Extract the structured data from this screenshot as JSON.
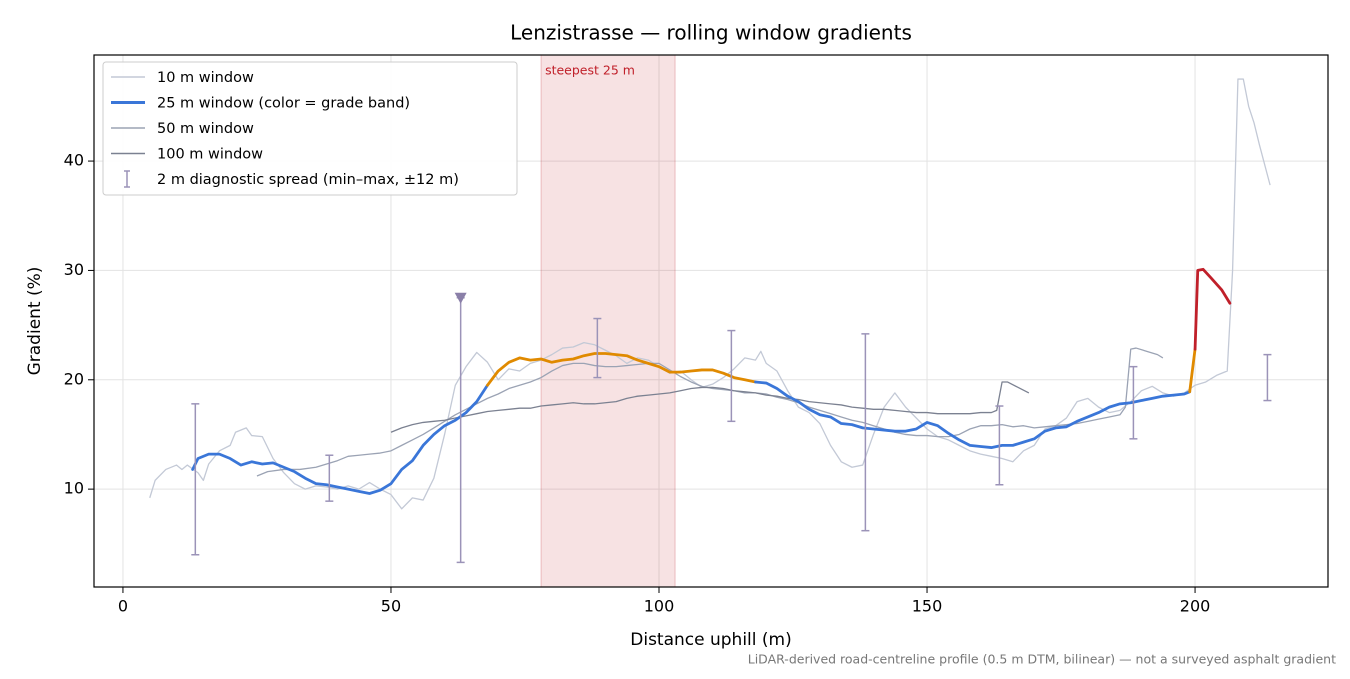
{
  "chart_data": {
    "type": "line",
    "title": "Lenzistrasse — rolling window gradients",
    "x_label": "Distance uphill (m)",
    "y_label": "Gradient (%)",
    "footnote": "LiDAR-derived road-centreline profile (0.5 m DTM, bilinear) — not a surveyed asphalt gradient",
    "xlim": [
      -5.4,
      224.8
    ],
    "ylim": [
      1.05,
      49.7
    ],
    "xticks": [
      0,
      50,
      100,
      150,
      200
    ],
    "yticks": [
      10,
      20,
      30,
      40
    ],
    "grid": true,
    "legend": "upper left",
    "shaded_region": {
      "label": "steepest 25 m",
      "x": [
        78,
        103
      ],
      "color": "#c0202a"
    },
    "series": [
      {
        "name": "10 m window",
        "color": "#c3c9d6",
        "x": [
          5,
          6,
          8,
          10,
          11,
          12,
          14,
          15,
          16,
          18,
          20,
          21,
          23,
          24,
          26,
          28,
          30,
          32,
          34,
          36,
          38,
          40,
          42,
          44,
          46,
          48,
          50,
          52,
          54,
          56,
          58,
          60,
          62,
          64,
          66,
          68,
          70,
          72,
          74,
          76,
          78,
          80,
          82,
          84,
          86,
          88,
          90,
          92,
          94,
          96,
          98,
          100,
          102,
          104,
          106,
          108,
          110,
          112,
          114,
          116,
          118,
          119,
          120,
          122,
          124,
          126,
          128,
          130,
          132,
          134,
          136,
          138,
          140,
          142,
          144,
          146,
          148,
          150,
          152,
          154,
          156,
          158,
          160,
          162,
          164,
          166,
          168,
          170,
          172,
          174,
          176,
          178,
          180,
          182,
          184,
          186,
          188,
          190,
          192,
          194,
          196,
          198,
          200,
          202,
          204,
          206,
          207,
          208,
          209,
          210,
          211,
          212,
          214
        ],
        "values": [
          9.2,
          10.8,
          11.8,
          12.2,
          11.8,
          12.2,
          11.5,
          10.8,
          12.3,
          13.5,
          14,
          15.2,
          15.6,
          14.9,
          14.8,
          12.8,
          11.5,
          10.5,
          10.0,
          10.3,
          10.2,
          10.0,
          10.3,
          10.0,
          10.6,
          10.0,
          9.5,
          8.2,
          9.2,
          9.0,
          11,
          15,
          19.5,
          21.2,
          22.5,
          21.6,
          20.0,
          21.0,
          20.8,
          21.5,
          21.8,
          22.3,
          22.9,
          23.0,
          23.4,
          23.2,
          22.7,
          22.2,
          21.5,
          22.0,
          21.8,
          21.2,
          20.6,
          20.8,
          20.0,
          19.3,
          19.6,
          20.2,
          21.0,
          22.0,
          21.8,
          22.6,
          21.5,
          20.8,
          19.0,
          17.5,
          17.0,
          16.0,
          14.0,
          12.5,
          12.0,
          12.2,
          15.0,
          17.5,
          18.8,
          17.5,
          16.5,
          15.5,
          14.8,
          14.5,
          14.0,
          13.5,
          13.2,
          13.0,
          12.8,
          12.5,
          13.5,
          14.0,
          15.5,
          15.8,
          16.5,
          18.0,
          18.3,
          17.5,
          17.0,
          17.2,
          18.0,
          19.0,
          19.4,
          18.8,
          18.5,
          18.8,
          19.5,
          19.8,
          20.4,
          20.8,
          30,
          47.5,
          47.5,
          45,
          43.5,
          41.5,
          37.8
        ]
      },
      {
        "name": "25 m window (color = grade band)",
        "color": "#3a76d8",
        "band_thresholds": [
          20,
          25
        ],
        "band_colors": [
          "#3a76d8",
          "#e08a00",
          "#c0202a"
        ],
        "x": [
          13,
          14,
          16,
          18,
          20,
          22,
          24,
          26,
          28,
          30,
          32,
          34,
          36,
          38,
          40,
          42,
          44,
          46,
          48,
          50,
          52,
          54,
          56,
          58,
          60,
          62,
          64,
          66,
          68,
          70,
          72,
          74,
          76,
          78,
          80,
          82,
          84,
          86,
          88,
          90,
          92,
          94,
          96,
          98,
          100,
          102,
          104,
          106,
          108,
          110,
          112,
          114,
          116,
          118,
          120,
          122,
          124,
          126,
          128,
          130,
          132,
          134,
          136,
          138,
          140,
          142,
          144,
          146,
          148,
          150,
          152,
          154,
          156,
          158,
          160,
          162,
          164,
          166,
          168,
          170,
          172,
          174,
          176,
          178,
          180,
          182,
          184,
          186,
          188,
          190,
          192,
          194,
          196,
          198,
          199,
          200,
          200.5,
          201.5,
          203,
          205,
          206.5
        ],
        "values": [
          11.8,
          12.8,
          13.2,
          13.2,
          12.8,
          12.2,
          12.5,
          12.3,
          12.4,
          12.0,
          11.6,
          11.0,
          10.5,
          10.4,
          10.2,
          10.0,
          9.8,
          9.6,
          9.9,
          10.5,
          11.8,
          12.6,
          14.0,
          15.0,
          15.8,
          16.3,
          17.0,
          18.0,
          19.5,
          20.8,
          21.6,
          22.0,
          21.8,
          21.9,
          21.6,
          21.8,
          21.9,
          22.2,
          22.4,
          22.4,
          22.3,
          22.2,
          21.8,
          21.5,
          21.2,
          20.7,
          20.7,
          20.8,
          20.9,
          20.9,
          20.6,
          20.2,
          20.0,
          19.8,
          19.7,
          19.2,
          18.5,
          18.0,
          17.3,
          16.8,
          16.6,
          16.0,
          15.9,
          15.6,
          15.5,
          15.4,
          15.3,
          15.3,
          15.5,
          16.1,
          15.8,
          15.1,
          14.5,
          14.0,
          13.9,
          13.8,
          14.0,
          14.0,
          14.3,
          14.6,
          15.3,
          15.6,
          15.7,
          16.2,
          16.6,
          17.0,
          17.5,
          17.8,
          17.9,
          18.1,
          18.3,
          18.5,
          18.6,
          18.7,
          18.9,
          22.8,
          30.0,
          30.1,
          29.3,
          28.2,
          27.0
        ]
      },
      {
        "name": "50 m window",
        "color": "#9ba3b4",
        "x": [
          25,
          27,
          30,
          33,
          36,
          38,
          40,
          42,
          44,
          46,
          48,
          50,
          52,
          54,
          56,
          58,
          60,
          62,
          64,
          66,
          68,
          70,
          72,
          74,
          76,
          78,
          80,
          82,
          84,
          86,
          88,
          90,
          92,
          94,
          96,
          98,
          100,
          102,
          104,
          106,
          108,
          110,
          112,
          114,
          116,
          118,
          120,
          122,
          124,
          126,
          128,
          130,
          132,
          134,
          136,
          138,
          140,
          142,
          144,
          146,
          148,
          150,
          152,
          154,
          156,
          158,
          160,
          162,
          164,
          166,
          168,
          170,
          172,
          174,
          176,
          178,
          180,
          182,
          184,
          186,
          187,
          188,
          189,
          191,
          193,
          194
        ],
        "values": [
          11.2,
          11.6,
          11.8,
          11.8,
          12.0,
          12.3,
          12.6,
          13.0,
          13.1,
          13.2,
          13.3,
          13.5,
          14.0,
          14.5,
          15.0,
          15.6,
          16.2,
          16.8,
          17.3,
          17.8,
          18.3,
          18.7,
          19.2,
          19.5,
          19.8,
          20.2,
          20.8,
          21.3,
          21.5,
          21.5,
          21.3,
          21.2,
          21.2,
          21.3,
          21.4,
          21.5,
          21.5,
          20.9,
          20.3,
          19.8,
          19.4,
          19.2,
          19.1,
          19.0,
          18.8,
          18.8,
          18.7,
          18.4,
          18.2,
          17.9,
          17.5,
          17.2,
          16.9,
          16.6,
          16.3,
          16.1,
          15.8,
          15.5,
          15.2,
          15.0,
          14.9,
          14.9,
          14.8,
          14.8,
          15.0,
          15.5,
          15.8,
          15.8,
          15.9,
          15.7,
          15.8,
          15.6,
          15.7,
          15.8,
          15.9,
          16.0,
          16.2,
          16.4,
          16.6,
          16.8,
          17.5,
          22.8,
          22.9,
          22.6,
          22.3,
          22.0
        ]
      },
      {
        "name": "100 m window",
        "color": "#7b8191",
        "x": [
          50,
          52,
          54,
          56,
          58,
          60,
          62,
          64,
          66,
          68,
          70,
          72,
          74,
          76,
          78,
          80,
          82,
          84,
          86,
          88,
          90,
          92,
          94,
          96,
          98,
          100,
          102,
          104,
          106,
          108,
          110,
          112,
          114,
          116,
          118,
          120,
          122,
          124,
          126,
          128,
          130,
          132,
          134,
          136,
          138,
          140,
          142,
          144,
          146,
          148,
          150,
          152,
          154,
          156,
          158,
          160,
          162,
          163,
          164,
          165,
          167,
          169
        ],
        "values": [
          15.2,
          15.6,
          15.9,
          16.1,
          16.2,
          16.3,
          16.5,
          16.7,
          16.9,
          17.1,
          17.2,
          17.3,
          17.4,
          17.4,
          17.6,
          17.7,
          17.8,
          17.9,
          17.8,
          17.8,
          17.9,
          18.0,
          18.3,
          18.5,
          18.6,
          18.7,
          18.8,
          19.0,
          19.2,
          19.3,
          19.3,
          19.2,
          19.0,
          18.9,
          18.8,
          18.6,
          18.5,
          18.3,
          18.2,
          18.0,
          17.9,
          17.8,
          17.7,
          17.5,
          17.4,
          17.3,
          17.3,
          17.2,
          17.1,
          17.0,
          17.0,
          16.9,
          16.9,
          16.9,
          16.9,
          17.0,
          17.0,
          17.2,
          19.8,
          19.8,
          19.3,
          18.8
        ]
      }
    ],
    "errorbars": {
      "name": "2 m diagnostic spread (min–max, ±12 m)",
      "color": "#9b93b8",
      "x": [
        13.5,
        38.5,
        63,
        88.5,
        113.5,
        138.5,
        163.5,
        188.5,
        213.5
      ],
      "low": [
        4.0,
        8.9,
        3.3,
        20.2,
        16.2,
        6.2,
        10.4,
        14.6,
        18.1
      ],
      "high": [
        17.8,
        13.1,
        27.5,
        25.6,
        24.5,
        24.2,
        17.6,
        21.2,
        22.3
      ]
    },
    "marker": {
      "x": 63,
      "y": 27.5,
      "color": "#8a7fa8"
    }
  }
}
